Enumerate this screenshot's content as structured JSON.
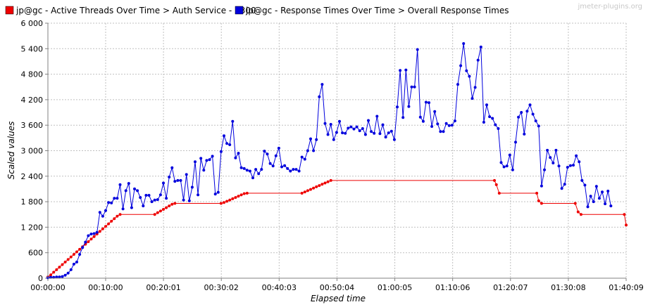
{
  "watermark": "jmeter-plugins.org",
  "colors": {
    "threads": "#ee0000",
    "response": "#0000dd",
    "grid": "#c0c0c0"
  },
  "chart_data": {
    "type": "line",
    "xlabel": "Elapsed time",
    "ylabel": "Scaled values",
    "ylim": [
      0,
      6000
    ],
    "xlim_seconds": [
      0,
      6009
    ],
    "y_ticks": [
      0,
      600,
      1200,
      1800,
      2400,
      3000,
      3600,
      4200,
      4800,
      5400,
      6000
    ],
    "y_tick_labels": [
      "0",
      "600",
      "1 200",
      "1 800",
      "2 400",
      "3 000",
      "3 600",
      "4 200",
      "4 800",
      "5 400",
      "6 000"
    ],
    "x_ticks_seconds": [
      0,
      600,
      1201,
      1802,
      2403,
      3004,
      3605,
      4206,
      4807,
      5408,
      6009
    ],
    "x_tick_labels": [
      "00:00:00",
      "00:10:00",
      "00:20:01",
      "00:30:02",
      "00:40:03",
      "00:50:04",
      "01:00:05",
      "01:10:06",
      "01:20:07",
      "01:30:08",
      "01:40:09"
    ],
    "legend_placement": "top-left",
    "grid": true,
    "series": [
      {
        "name": "jp@gc - Active Threads Over Time > Auth Service - 2300",
        "color": "#ee0000",
        "points": [
          [
            0,
            30
          ],
          [
            30,
            80
          ],
          [
            60,
            140
          ],
          [
            90,
            200
          ],
          [
            120,
            260
          ],
          [
            150,
            320
          ],
          [
            180,
            380
          ],
          [
            210,
            440
          ],
          [
            240,
            500
          ],
          [
            270,
            560
          ],
          [
            300,
            620
          ],
          [
            330,
            680
          ],
          [
            360,
            740
          ],
          [
            390,
            800
          ],
          [
            420,
            860
          ],
          [
            450,
            920
          ],
          [
            480,
            980
          ],
          [
            510,
            1040
          ],
          [
            540,
            1100
          ],
          [
            570,
            1160
          ],
          [
            600,
            1220
          ],
          [
            630,
            1280
          ],
          [
            660,
            1340
          ],
          [
            690,
            1400
          ],
          [
            720,
            1460
          ],
          [
            750,
            1500
          ],
          [
            1110,
            1500
          ],
          [
            1140,
            1540
          ],
          [
            1170,
            1580
          ],
          [
            1200,
            1620
          ],
          [
            1230,
            1660
          ],
          [
            1260,
            1700
          ],
          [
            1290,
            1740
          ],
          [
            1320,
            1760
          ],
          [
            1800,
            1760
          ],
          [
            1830,
            1780
          ],
          [
            1860,
            1810
          ],
          [
            1890,
            1840
          ],
          [
            1920,
            1870
          ],
          [
            1950,
            1900
          ],
          [
            1980,
            1930
          ],
          [
            2010,
            1960
          ],
          [
            2040,
            1990
          ],
          [
            2070,
            2000
          ],
          [
            2640,
            2000
          ],
          [
            2670,
            2030
          ],
          [
            2700,
            2060
          ],
          [
            2730,
            2090
          ],
          [
            2760,
            2120
          ],
          [
            2790,
            2150
          ],
          [
            2820,
            2180
          ],
          [
            2850,
            2210
          ],
          [
            2880,
            2240
          ],
          [
            2910,
            2270
          ],
          [
            2940,
            2300
          ],
          [
            4640,
            2300
          ],
          [
            4660,
            2200
          ],
          [
            4690,
            2000
          ],
          [
            5080,
            2000
          ],
          [
            5100,
            1820
          ],
          [
            5130,
            1760
          ],
          [
            5480,
            1760
          ],
          [
            5510,
            1560
          ],
          [
            5540,
            1500
          ],
          [
            5990,
            1500
          ],
          [
            6009,
            1250
          ]
        ]
      },
      {
        "name": "jp@gc - Response Times Over Time > Overall Response Times",
        "color": "#0000dd",
        "points": [
          [
            0,
            10
          ],
          [
            30,
            20
          ],
          [
            60,
            20
          ],
          [
            90,
            30
          ],
          [
            120,
            30
          ],
          [
            150,
            40
          ],
          [
            180,
            70
          ],
          [
            210,
            120
          ],
          [
            240,
            200
          ],
          [
            270,
            330
          ],
          [
            300,
            380
          ],
          [
            330,
            560
          ],
          [
            360,
            720
          ],
          [
            390,
            850
          ],
          [
            420,
            1000
          ],
          [
            450,
            1040
          ],
          [
            480,
            1050
          ],
          [
            510,
            1080
          ],
          [
            540,
            1550
          ],
          [
            570,
            1460
          ],
          [
            600,
            1590
          ],
          [
            630,
            1780
          ],
          [
            660,
            1770
          ],
          [
            690,
            1880
          ],
          [
            720,
            1880
          ],
          [
            750,
            2200
          ],
          [
            780,
            1630
          ],
          [
            810,
            2060
          ],
          [
            840,
            2230
          ],
          [
            870,
            1660
          ],
          [
            900,
            2100
          ],
          [
            930,
            2060
          ],
          [
            960,
            1900
          ],
          [
            990,
            1700
          ],
          [
            1020,
            1950
          ],
          [
            1050,
            1950
          ],
          [
            1080,
            1800
          ],
          [
            1110,
            1840
          ],
          [
            1140,
            1850
          ],
          [
            1170,
            1960
          ],
          [
            1200,
            2240
          ],
          [
            1230,
            1880
          ],
          [
            1260,
            2380
          ],
          [
            1290,
            2600
          ],
          [
            1320,
            2280
          ],
          [
            1350,
            2300
          ],
          [
            1380,
            2300
          ],
          [
            1410,
            1840
          ],
          [
            1440,
            2440
          ],
          [
            1470,
            1820
          ],
          [
            1500,
            2140
          ],
          [
            1530,
            2740
          ],
          [
            1560,
            1960
          ],
          [
            1590,
            2820
          ],
          [
            1620,
            2540
          ],
          [
            1650,
            2770
          ],
          [
            1680,
            2790
          ],
          [
            1710,
            2870
          ],
          [
            1740,
            1980
          ],
          [
            1770,
            2020
          ],
          [
            1800,
            2980
          ],
          [
            1830,
            3350
          ],
          [
            1860,
            3170
          ],
          [
            1890,
            3140
          ],
          [
            1920,
            3690
          ],
          [
            1950,
            2830
          ],
          [
            1980,
            2940
          ],
          [
            2010,
            2600
          ],
          [
            2040,
            2580
          ],
          [
            2070,
            2540
          ],
          [
            2100,
            2520
          ],
          [
            2130,
            2360
          ],
          [
            2160,
            2560
          ],
          [
            2190,
            2460
          ],
          [
            2220,
            2560
          ],
          [
            2250,
            2990
          ],
          [
            2280,
            2920
          ],
          [
            2310,
            2700
          ],
          [
            2340,
            2640
          ],
          [
            2370,
            2880
          ],
          [
            2400,
            3060
          ],
          [
            2430,
            2620
          ],
          [
            2460,
            2650
          ],
          [
            2490,
            2580
          ],
          [
            2520,
            2520
          ],
          [
            2550,
            2560
          ],
          [
            2580,
            2560
          ],
          [
            2610,
            2520
          ],
          [
            2640,
            2850
          ],
          [
            2670,
            2800
          ],
          [
            2700,
            3000
          ],
          [
            2730,
            3280
          ],
          [
            2760,
            3000
          ],
          [
            2790,
            3260
          ],
          [
            2820,
            4270
          ],
          [
            2850,
            4560
          ],
          [
            2880,
            3640
          ],
          [
            2910,
            3380
          ],
          [
            2940,
            3620
          ],
          [
            2970,
            3260
          ],
          [
            3000,
            3430
          ],
          [
            3030,
            3690
          ],
          [
            3060,
            3420
          ],
          [
            3090,
            3410
          ],
          [
            3120,
            3530
          ],
          [
            3150,
            3560
          ],
          [
            3180,
            3510
          ],
          [
            3210,
            3560
          ],
          [
            3240,
            3470
          ],
          [
            3270,
            3520
          ],
          [
            3300,
            3380
          ],
          [
            3330,
            3710
          ],
          [
            3360,
            3450
          ],
          [
            3390,
            3410
          ],
          [
            3420,
            3810
          ],
          [
            3450,
            3400
          ],
          [
            3480,
            3610
          ],
          [
            3510,
            3320
          ],
          [
            3540,
            3420
          ],
          [
            3570,
            3460
          ],
          [
            3600,
            3260
          ],
          [
            3630,
            4030
          ],
          [
            3660,
            4890
          ],
          [
            3690,
            3780
          ],
          [
            3720,
            4900
          ],
          [
            3750,
            4040
          ],
          [
            3780,
            4500
          ],
          [
            3810,
            4500
          ],
          [
            3840,
            5380
          ],
          [
            3870,
            3790
          ],
          [
            3900,
            3690
          ],
          [
            3930,
            4140
          ],
          [
            3960,
            4130
          ],
          [
            3990,
            3570
          ],
          [
            4020,
            3920
          ],
          [
            4050,
            3630
          ],
          [
            4080,
            3450
          ],
          [
            4110,
            3450
          ],
          [
            4140,
            3640
          ],
          [
            4170,
            3590
          ],
          [
            4200,
            3600
          ],
          [
            4230,
            3700
          ],
          [
            4260,
            4560
          ],
          [
            4290,
            5000
          ],
          [
            4320,
            5520
          ],
          [
            4350,
            4880
          ],
          [
            4380,
            4750
          ],
          [
            4410,
            4230
          ],
          [
            4440,
            4490
          ],
          [
            4470,
            5130
          ],
          [
            4500,
            5440
          ],
          [
            4530,
            3670
          ],
          [
            4560,
            4080
          ],
          [
            4590,
            3800
          ],
          [
            4620,
            3760
          ],
          [
            4650,
            3610
          ],
          [
            4680,
            3520
          ],
          [
            4710,
            2720
          ],
          [
            4740,
            2620
          ],
          [
            4770,
            2640
          ],
          [
            4800,
            2900
          ],
          [
            4830,
            2550
          ],
          [
            4860,
            3200
          ],
          [
            4890,
            3790
          ],
          [
            4920,
            3900
          ],
          [
            4950,
            3390
          ],
          [
            4980,
            3930
          ],
          [
            5010,
            4080
          ],
          [
            5040,
            3860
          ],
          [
            5070,
            3700
          ],
          [
            5100,
            3580
          ],
          [
            5130,
            2170
          ],
          [
            5160,
            2550
          ],
          [
            5190,
            3010
          ],
          [
            5220,
            2840
          ],
          [
            5250,
            2710
          ],
          [
            5280,
            3010
          ],
          [
            5310,
            2640
          ],
          [
            5340,
            2110
          ],
          [
            5370,
            2210
          ],
          [
            5400,
            2610
          ],
          [
            5430,
            2650
          ],
          [
            5460,
            2660
          ],
          [
            5490,
            2880
          ],
          [
            5520,
            2740
          ],
          [
            5550,
            2300
          ],
          [
            5580,
            2190
          ],
          [
            5610,
            1680
          ],
          [
            5640,
            1930
          ],
          [
            5670,
            1800
          ],
          [
            5700,
            2160
          ],
          [
            5730,
            1880
          ],
          [
            5760,
            2030
          ],
          [
            5790,
            1750
          ],
          [
            5820,
            2050
          ],
          [
            5850,
            1700
          ]
        ]
      }
    ]
  }
}
